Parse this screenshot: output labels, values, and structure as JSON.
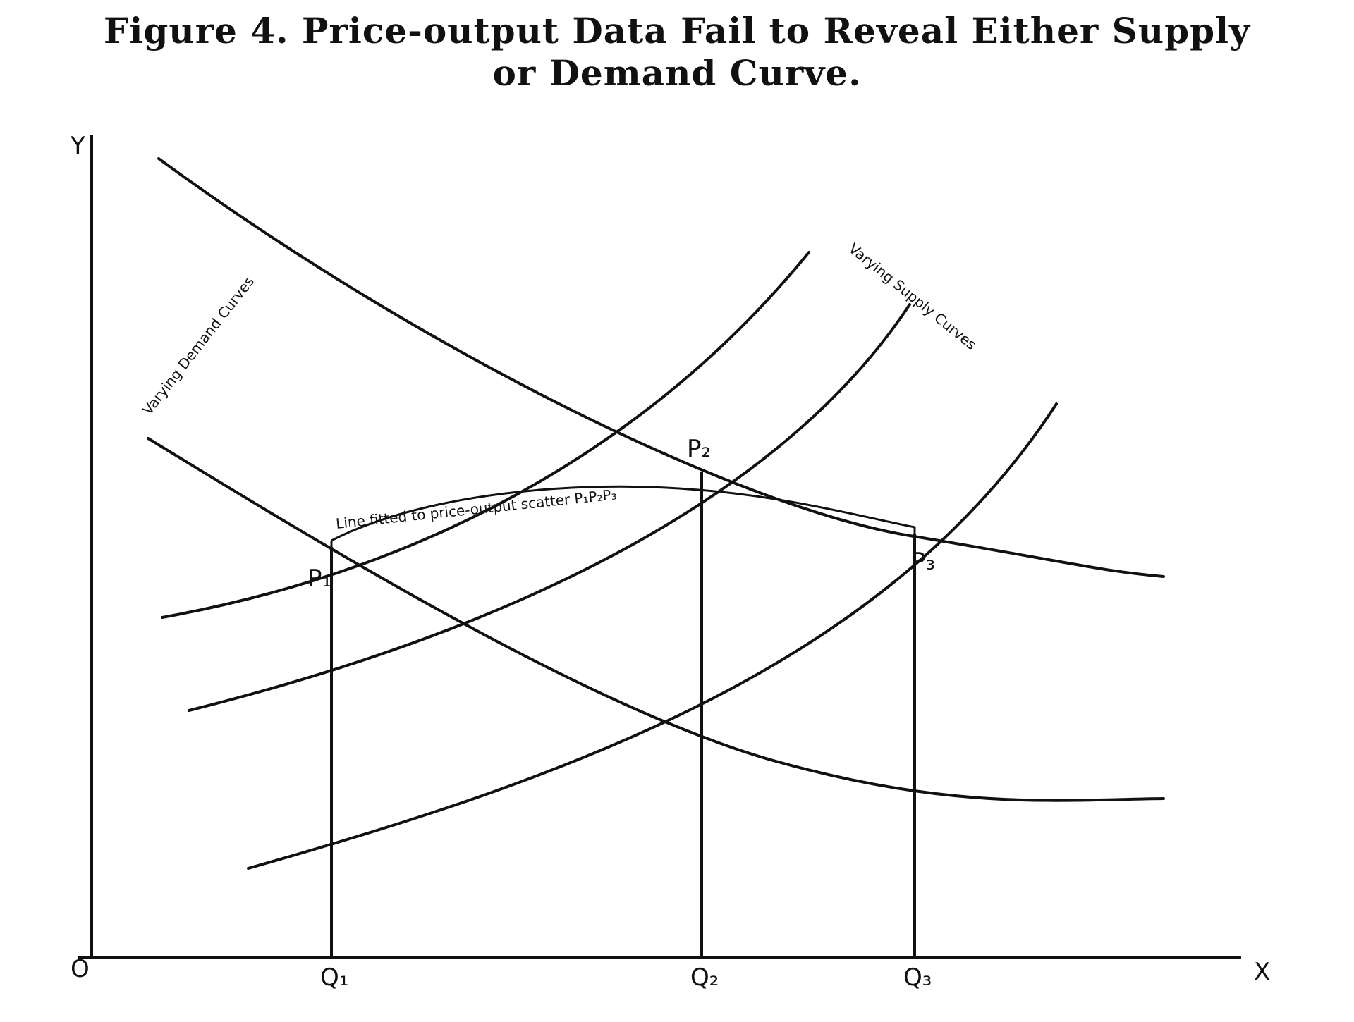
{
  "title": {
    "line1": "Figure 4.  Price-output Data Fail to Reveal Either Supply",
    "line2": "or Demand Curve."
  },
  "axes": {
    "origin": "O",
    "x": "X",
    "y": "Y"
  },
  "curve_labels": {
    "demand": "Varying Demand Curves",
    "supply": "Varying Supply Curves",
    "fitted_line": "Line fitted to price-output scatter P₁P₂P₃"
  },
  "points": {
    "p1": "P₁",
    "p2": "P₂",
    "p3": "P₃"
  },
  "quantities": {
    "q1": "Q₁",
    "q2": "Q₂",
    "q3": "Q₃"
  }
}
